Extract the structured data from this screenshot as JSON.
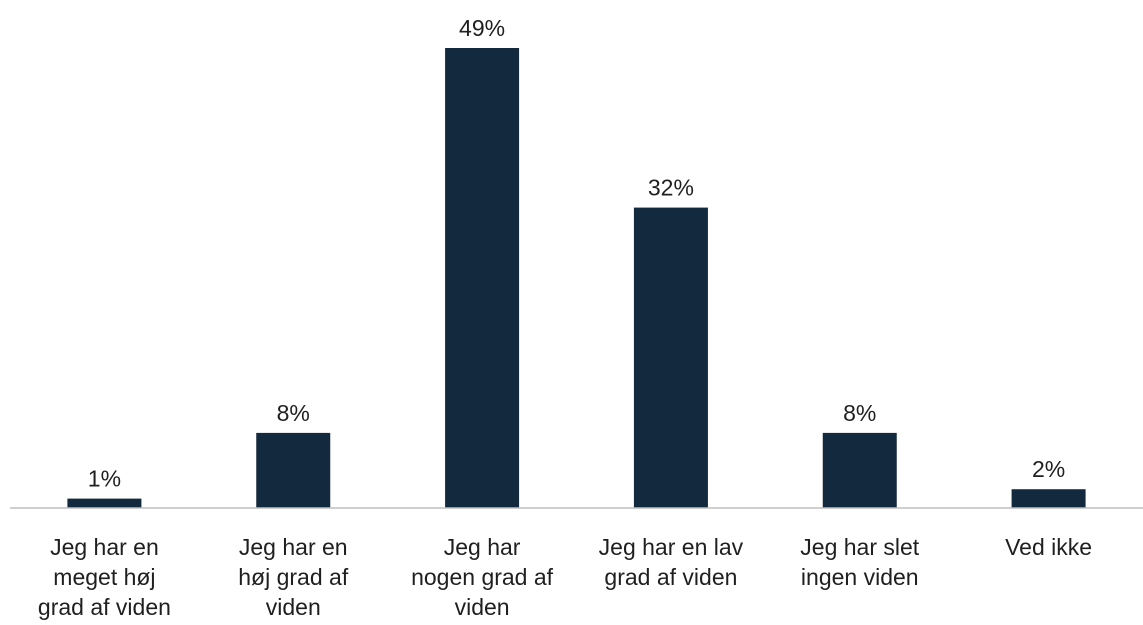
{
  "chart_data": {
    "type": "bar",
    "title": "",
    "xlabel": "",
    "ylabel": "",
    "ylim": [
      0,
      49
    ],
    "grid": false,
    "legend": "none",
    "bar_color": "#13293d",
    "categories": [
      [
        "Jeg har en",
        "meget høj",
        "grad af viden"
      ],
      [
        "Jeg har en",
        "høj grad af",
        "viden"
      ],
      [
        "Jeg har",
        "nogen grad af",
        "viden"
      ],
      [
        "Jeg har en lav",
        "grad af viden"
      ],
      [
        "Jeg har slet",
        "ingen viden"
      ],
      [
        "Ved ikke"
      ]
    ],
    "values": [
      1,
      8,
      49,
      32,
      8,
      2
    ],
    "value_labels": [
      "1%",
      "8%",
      "49%",
      "32%",
      "8%",
      "2%"
    ]
  }
}
